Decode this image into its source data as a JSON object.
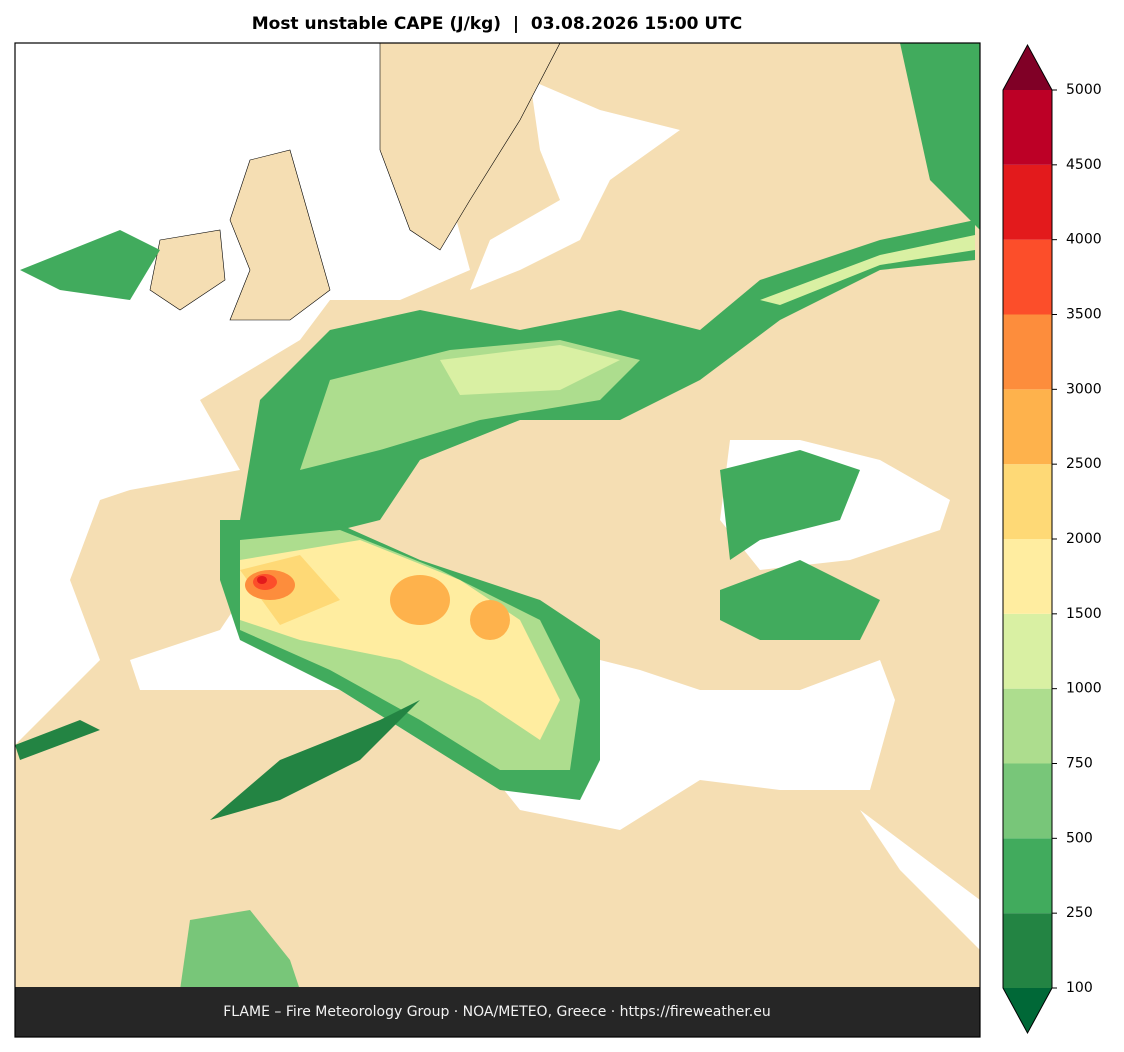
{
  "title": "Most unstable CAPE (J/kg)  |  03.08.2026 15:00 UTC",
  "colorbar": {
    "levels": [
      100,
      250,
      500,
      750,
      1000,
      1500,
      2000,
      2500,
      3000,
      3500,
      4000,
      4500,
      5000
    ],
    "colors": [
      "#238443",
      "#41ab5d",
      "#78c679",
      "#addd8e",
      "#d9f0a3",
      "#ffeda0",
      "#fed976",
      "#feb24c",
      "#fd8d3c",
      "#fc4e2a",
      "#e31a1c",
      "#bd0026"
    ],
    "over_color": "#800026",
    "under_color": "#006837"
  },
  "footer": "FLAME – Fire Meteorology Group · NOA/METEO, Greece · https://fireweather.eu"
}
